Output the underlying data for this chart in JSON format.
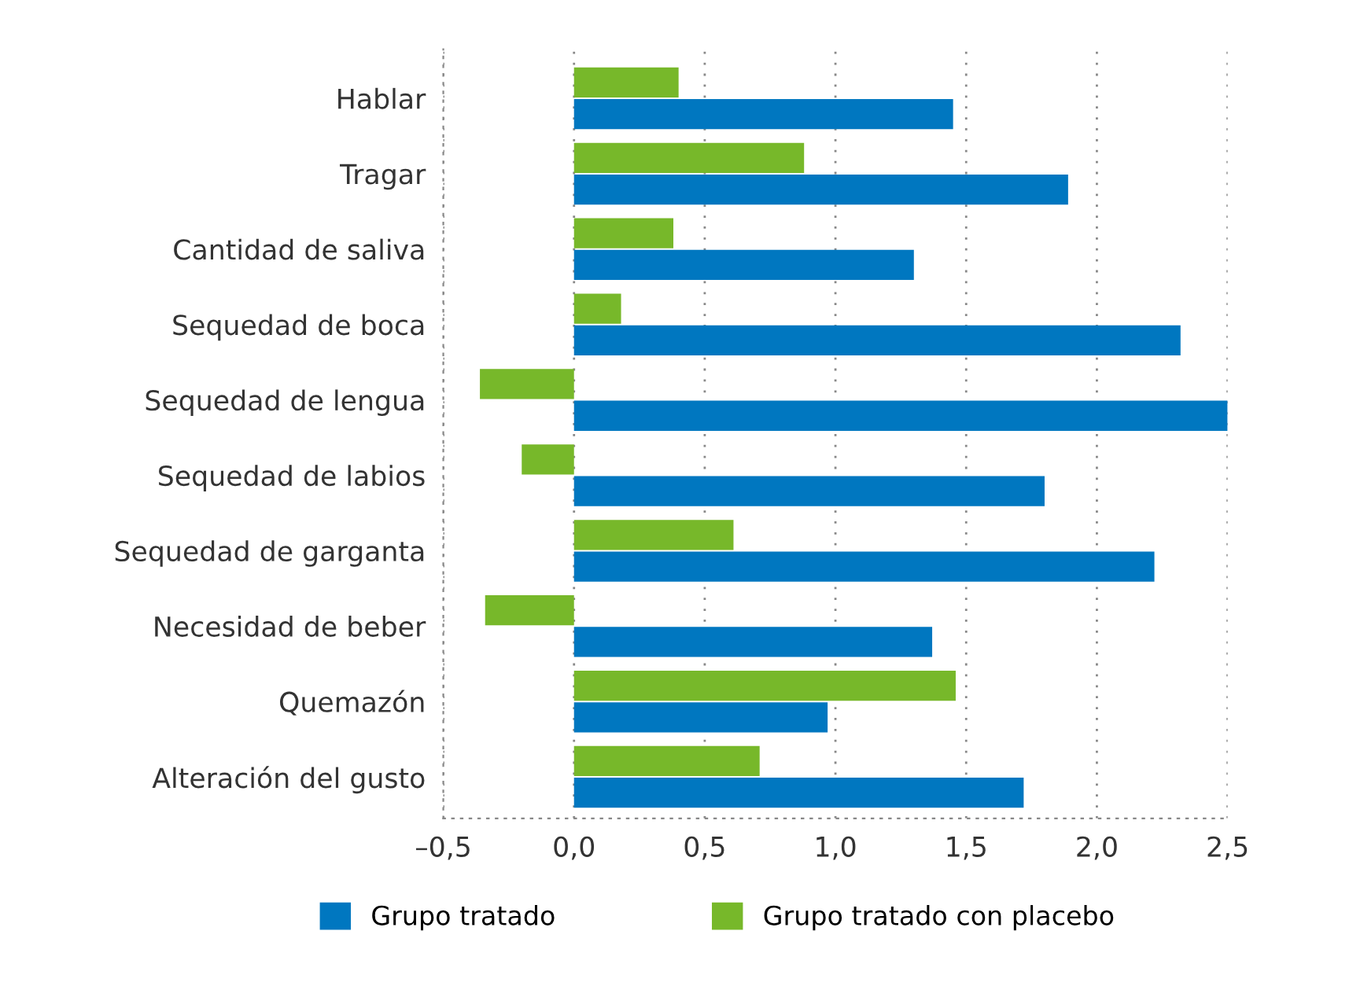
{
  "chart_data": {
    "type": "bar",
    "orientation": "horizontal",
    "categories": [
      "Hablar",
      "Tragar",
      "Cantidad de saliva",
      "Sequedad de boca",
      "Sequedad de lengua",
      "Sequedad de labios",
      "Sequedad de garganta",
      "Necesidad de beber",
      "Quemazón",
      "Alteración del gusto"
    ],
    "series": [
      {
        "name": "Grupo tratado",
        "color": "#0077c0",
        "values": [
          1.45,
          1.89,
          1.3,
          2.32,
          2.5,
          1.8,
          2.22,
          1.37,
          0.97,
          1.72
        ]
      },
      {
        "name": "Grupo tratado con placebo",
        "color": "#77b82a",
        "values": [
          0.4,
          0.88,
          0.38,
          0.18,
          -0.36,
          -0.2,
          0.61,
          -0.34,
          1.46,
          0.71
        ]
      }
    ],
    "xlim": [
      -0.5,
      2.5
    ],
    "xticks": [
      {
        "value": -0.5,
        "label": "–0,5"
      },
      {
        "value": 0,
        "label": "0,0"
      },
      {
        "value": 0.5,
        "label": "0,5"
      },
      {
        "value": 1,
        "label": "1,0"
      },
      {
        "value": 1.5,
        "label": "1,5"
      },
      {
        "value": 2,
        "label": "2,0"
      },
      {
        "value": 2.5,
        "label": "2,5"
      }
    ],
    "grid": "x",
    "legend": "bottom"
  }
}
